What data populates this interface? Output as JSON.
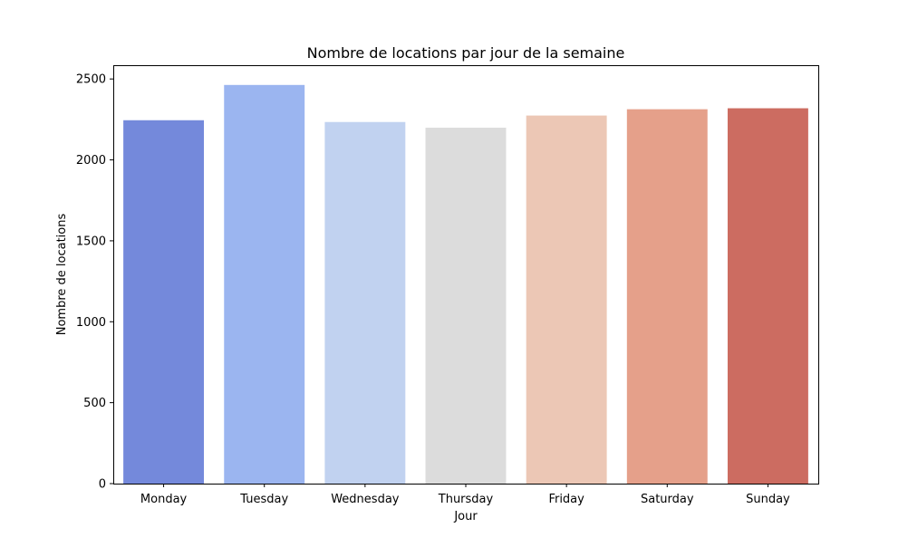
{
  "chart_data": {
    "type": "bar",
    "title": "Nombre de locations par jour de la semaine",
    "xlabel": "Jour",
    "ylabel": "Nombre de locations",
    "categories": [
      "Monday",
      "Tuesday",
      "Wednesday",
      "Thursday",
      "Friday",
      "Saturday",
      "Sunday"
    ],
    "values": [
      2245,
      2463,
      2234,
      2199,
      2274,
      2313,
      2319
    ],
    "colors": [
      "#7489db",
      "#9bb5f0",
      "#c1d2f0",
      "#dcdcdc",
      "#ecc7b5",
      "#e5a08a",
      "#cc6c61"
    ],
    "ylim": [
      0,
      2585
    ],
    "yticks": [
      0,
      500,
      1000,
      1500,
      2000,
      2500
    ],
    "grid": false,
    "legend": "none"
  }
}
